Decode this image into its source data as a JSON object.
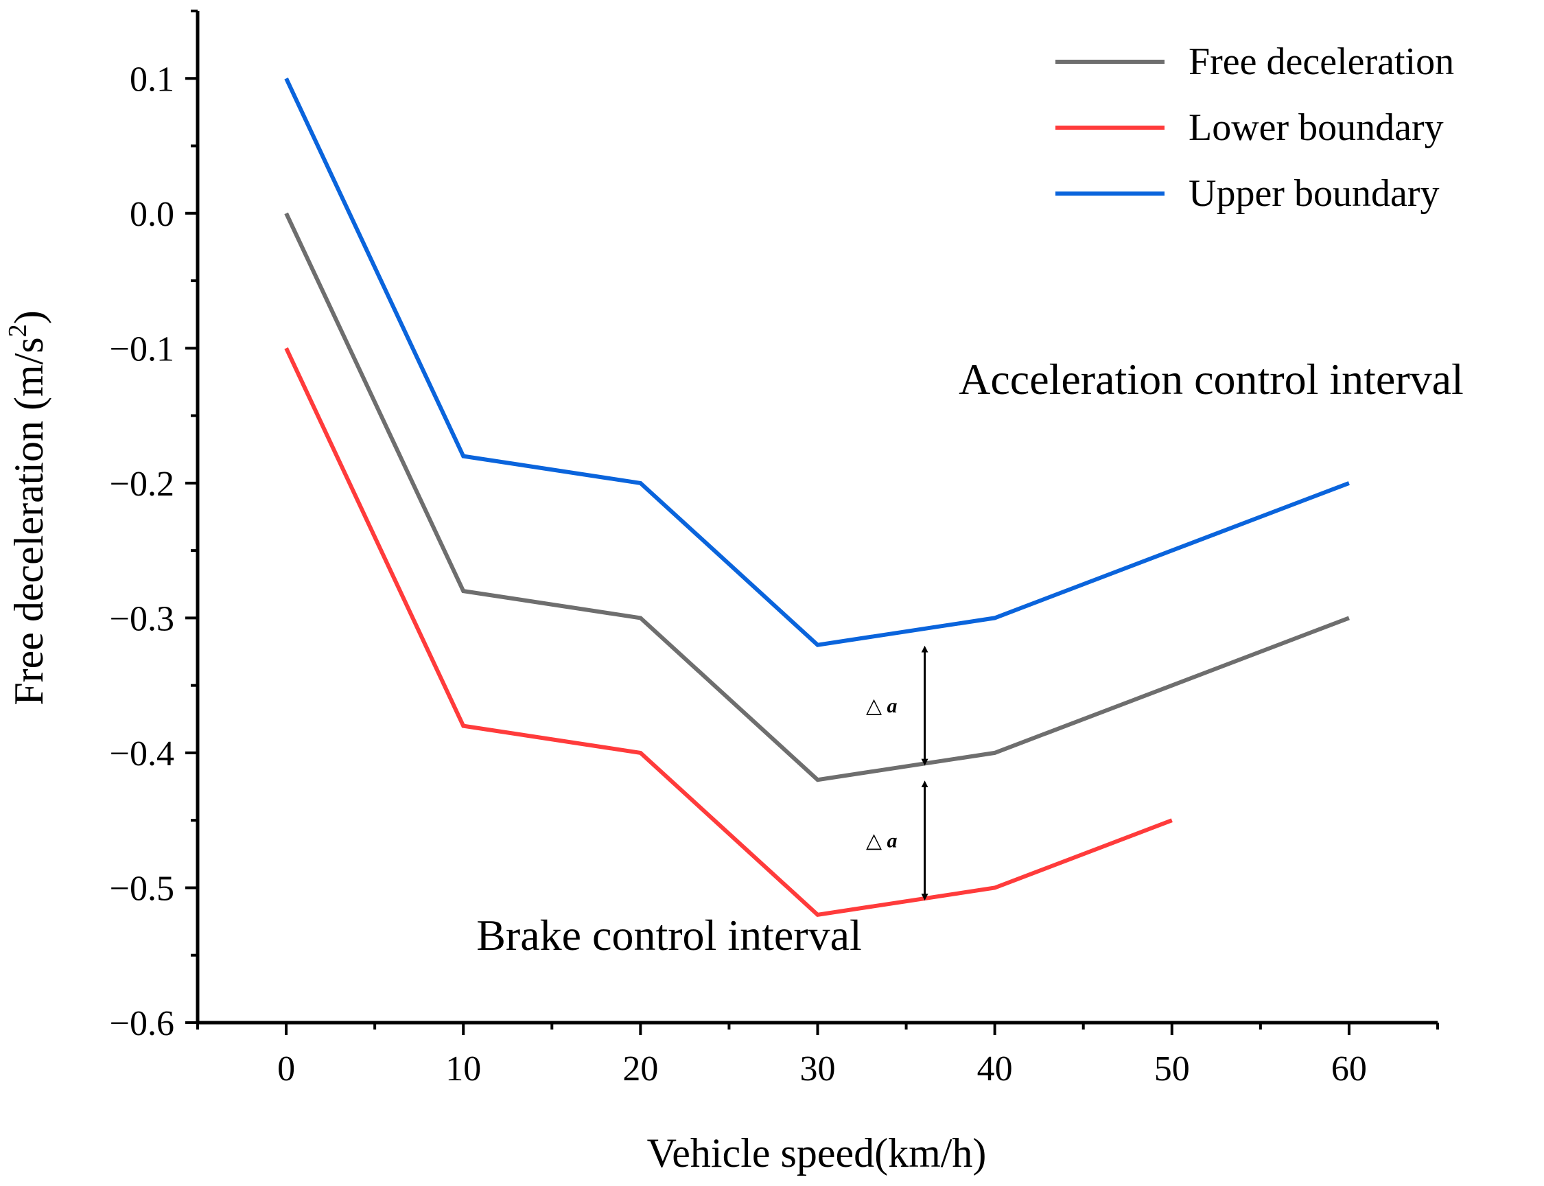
{
  "chart_data": {
    "type": "line",
    "title": "",
    "xlabel": "Vehicle speed(km/h)",
    "ylabel_main": "Free deceleration (m/s",
    "ylabel_sup": "2",
    "ylabel_end": ")",
    "xlim": [
      -5,
      65
    ],
    "ylim": [
      -0.6,
      0.15
    ],
    "x_ticks": [
      0,
      10,
      20,
      30,
      40,
      50,
      60
    ],
    "x_tick_labels": [
      "0",
      "10",
      "20",
      "30",
      "40",
      "50",
      "60"
    ],
    "y_ticks": [
      0.1,
      0.0,
      -0.1,
      -0.2,
      -0.3,
      -0.4,
      -0.5,
      -0.6
    ],
    "y_tick_labels": [
      "0.1",
      "0.0",
      "−0.1",
      "−0.2",
      "−0.3",
      "−0.4",
      "−0.5",
      "−0.6"
    ],
    "legend_position": "top-right",
    "grid": false,
    "series": [
      {
        "name": "Free deceleration",
        "color": "#6e6e6e",
        "x": [
          0,
          10,
          20,
          30,
          40,
          50,
          60
        ],
        "y": [
          0.0,
          -0.28,
          -0.3,
          -0.42,
          -0.4,
          -0.35,
          -0.3
        ]
      },
      {
        "name": "Lower boundary",
        "color": "#ff3b3b",
        "x": [
          0,
          10,
          20,
          30,
          40,
          50
        ],
        "y": [
          -0.1,
          -0.38,
          -0.4,
          -0.52,
          -0.5,
          -0.45
        ]
      },
      {
        "name": "Upper boundary",
        "color": "#0a64dc",
        "x": [
          0,
          10,
          20,
          30,
          40,
          50,
          60
        ],
        "y": [
          0.1,
          -0.18,
          -0.2,
          -0.32,
          -0.3,
          -0.25,
          -0.2
        ]
      }
    ],
    "annotations": {
      "upper_region": "Acceleration control interval",
      "lower_region": "Brake control interval",
      "delta_label": "△ a",
      "delta_arrows": [
        {
          "x": 35,
          "y_from": -0.32,
          "y_to": -0.41
        },
        {
          "x": 35,
          "y_from": -0.42,
          "y_to": -0.51
        }
      ]
    }
  }
}
